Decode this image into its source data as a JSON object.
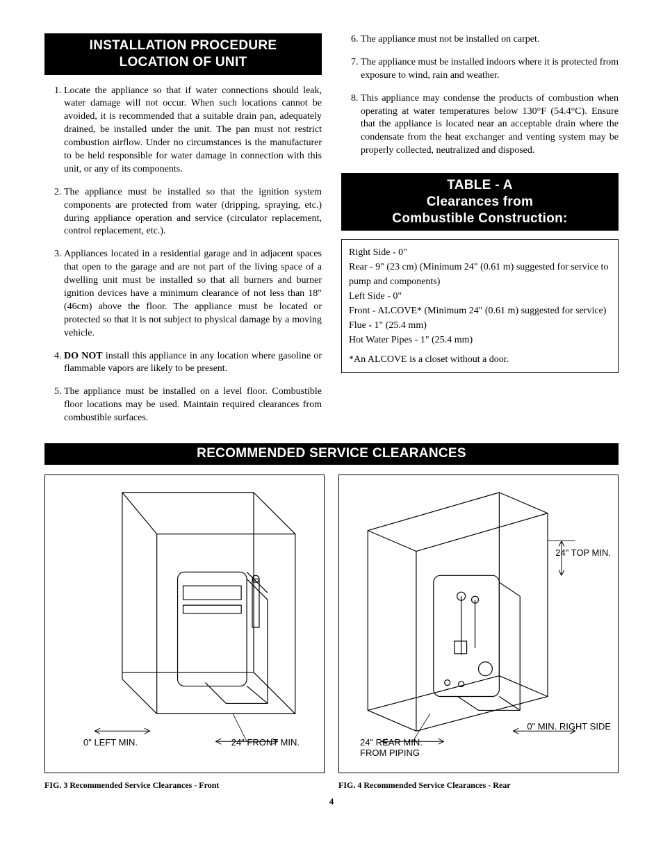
{
  "left": {
    "banner_l1": "INSTALLATION PROCEDURE",
    "banner_l2": "LOCATION OF UNIT",
    "items": [
      "Locate the appliance so that if water connections should leak, water damage will not occur. When such locations cannot be avoided, it is recommended that a suitable drain pan, adequately drained, be installed under the unit. The pan must not restrict combustion airflow. Under no circumstances is the manufacturer to be held responsible for water damage in connection with this unit, or any of its components.",
      "The appliance must be installed so that the ignition system components are protected from water (dripping, spraying, etc.) during appliance operation and service (circulator replacement, control replacement, etc.).",
      "Appliances located in a residential garage and in adjacent spaces that open to the garage and are not part of the living space of a dwelling unit must be installed so that all burners and burner ignition devices have a minimum clearance of not less than 18\" (46cm) above the floor. The appliance must be located or protected so that it is not subject to physical damage by a moving vehicle.",
      "<span class=\"bold\">DO NOT</span> install this appliance in any location where gasoline or flammable vapors are likely to be present.",
      "The appliance must be installed on a level floor. Combustible floor locations may be used. Maintain required clearances from combustible surfaces."
    ]
  },
  "right": {
    "items": [
      "The appliance must not be installed on carpet.",
      "The appliance must be installed indoors where it is protected from exposure to wind, rain and weather.",
      "This appliance may condense the products of combustion when operating at water temperatures below 130°F (54.4°C). Ensure that the appliance is located near an acceptable drain where the condensate from the heat exchanger and venting system may be properly collected, neutralized and disposed."
    ],
    "table_banner_l1": "TABLE - A",
    "table_banner_l2": "Clearances from",
    "table_banner_l3": "Combustible Construction:",
    "table_lines": [
      "Right Side - 0\"",
      "Rear - 9\" (23 cm) (Minimum 24\" (0.61 m) suggested for service to pump and components)",
      "Left Side - 0\"",
      "Front - ALCOVE* (Minimum 24\" (0.61 m) suggested for service)",
      "Flue - 1\" (25.4 mm)",
      "Hot Water Pipes - 1\" (25.4 mm)"
    ],
    "table_note": "*An ALCOVE is a closet without a door."
  },
  "wide_banner": "RECOMMENDED SERVICE CLEARANCES",
  "fig3": {
    "caption": "FIG. 3   Recommended Service Clearances - Front",
    "label_left": "0\" LEFT MIN.",
    "label_front": "24\" FRONT MIN."
  },
  "fig4": {
    "caption": "FIG. 4   Recommended Service Clearances - Rear",
    "label_top": "24\" TOP MIN.",
    "label_right": "0\" MIN. RIGHT SIDE",
    "label_rear_l1": "24\" REAR MIN.",
    "label_rear_l2": "FROM PIPING"
  },
  "page_number": "4",
  "colors": {
    "banner_bg": "#000000",
    "banner_fg": "#ffffff",
    "rule": "#000000",
    "text": "#000000",
    "bg": "#ffffff"
  }
}
